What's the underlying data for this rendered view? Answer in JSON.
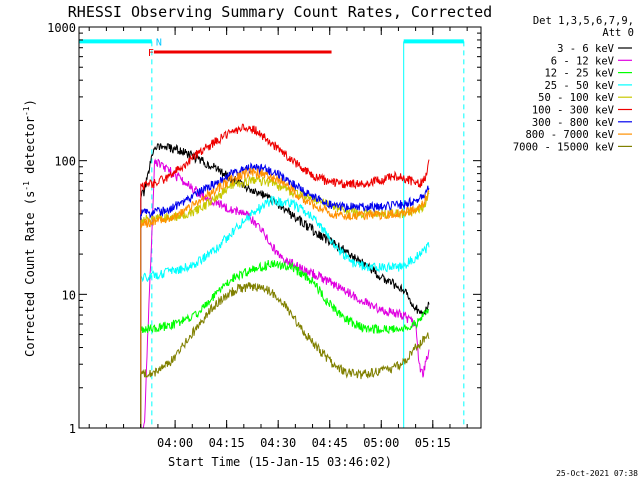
{
  "chart_data": {
    "type": "line",
    "title": "RHESSI Observing Summary Count Rates, Corrected",
    "xlabel": "Start Time (15-Jan-15 03:46:02)",
    "ylabel_pre": "Corrected Count Rate (s",
    "ylabel_sup": "-1",
    "ylabel_mid": " detector",
    "ylabel_sup2": "-1",
    "ylabel_post": ")",
    "yscale": "log",
    "ylim": [
      1,
      1000
    ],
    "xlim_min": [
      -14,
      103
    ],
    "x_unit": "minutes after 03:46:02",
    "x_ticks": [
      {
        "label": "04:00",
        "min": 13.97
      },
      {
        "label": "04:15",
        "min": 28.97
      },
      {
        "label": "04:30",
        "min": 43.97
      },
      {
        "label": "04:45",
        "min": 58.97
      },
      {
        "label": "05:00",
        "min": 73.97
      },
      {
        "label": "05:15",
        "min": 88.97
      }
    ],
    "y_ticks": [
      {
        "label": "1",
        "value": 1
      },
      {
        "label": "10",
        "value": 10
      },
      {
        "label": "100",
        "value": 100
      },
      {
        "label": "1000",
        "value": 1000
      }
    ],
    "legend_header": [
      "Det 1,3,5,6,7,9,",
      "Att 0"
    ],
    "series": [
      {
        "name": "3 - 6 keV",
        "color": "#000000",
        "points": [
          [
            4,
            55
          ],
          [
            5,
            58
          ],
          [
            8,
            130
          ],
          [
            15,
            120
          ],
          [
            20,
            105
          ],
          [
            25,
            90
          ],
          [
            30,
            75
          ],
          [
            35,
            63
          ],
          [
            40,
            55
          ],
          [
            45,
            45
          ],
          [
            50,
            36
          ],
          [
            55,
            29
          ],
          [
            60,
            24
          ],
          [
            65,
            20
          ],
          [
            70,
            16
          ],
          [
            75,
            13
          ],
          [
            80,
            11
          ],
          [
            84,
            8
          ],
          [
            86,
            7
          ],
          [
            88,
            9
          ]
        ]
      },
      {
        "name": "6 - 12 keV",
        "color": "#e000e0",
        "points": [
          [
            4,
            1
          ],
          [
            5,
            1
          ],
          [
            8,
            100
          ],
          [
            12,
            85
          ],
          [
            17,
            68
          ],
          [
            22,
            55
          ],
          [
            28,
            46
          ],
          [
            32,
            42
          ],
          [
            35,
            39
          ],
          [
            38,
            33
          ],
          [
            40,
            28
          ],
          [
            42,
            23
          ],
          [
            44,
            20
          ],
          [
            46,
            18
          ],
          [
            50,
            16
          ],
          [
            55,
            14
          ],
          [
            60,
            12
          ],
          [
            65,
            10
          ],
          [
            70,
            8.5
          ],
          [
            75,
            7.5
          ],
          [
            80,
            7
          ],
          [
            84,
            6
          ],
          [
            85,
            3
          ],
          [
            86,
            2.5
          ],
          [
            88,
            4
          ]
        ]
      },
      {
        "name": "12 - 25 keV",
        "color": "#00ff00",
        "points": [
          [
            4,
            5.5
          ],
          [
            8,
            5.5
          ],
          [
            14,
            6
          ],
          [
            20,
            7
          ],
          [
            26,
            10
          ],
          [
            30,
            13
          ],
          [
            36,
            15
          ],
          [
            42,
            17
          ],
          [
            48,
            16
          ],
          [
            54,
            12.5
          ],
          [
            58,
            9
          ],
          [
            62,
            7
          ],
          [
            66,
            6
          ],
          [
            70,
            5.5
          ],
          [
            75,
            5.5
          ],
          [
            80,
            5.5
          ],
          [
            84,
            6
          ],
          [
            86,
            7
          ],
          [
            88,
            8
          ]
        ]
      },
      {
        "name": "25 - 50 keV",
        "color": "#00ffff",
        "points": [
          [
            4,
            13
          ],
          [
            8,
            14
          ],
          [
            14,
            15
          ],
          [
            20,
            17
          ],
          [
            26,
            22
          ],
          [
            30,
            28
          ],
          [
            36,
            40
          ],
          [
            42,
            50
          ],
          [
            48,
            48
          ],
          [
            54,
            38
          ],
          [
            58,
            28
          ],
          [
            62,
            21
          ],
          [
            66,
            17
          ],
          [
            70,
            16
          ],
          [
            75,
            16
          ],
          [
            80,
            16
          ],
          [
            84,
            19
          ],
          [
            86,
            21
          ],
          [
            88,
            23
          ]
        ]
      },
      {
        "name": "50 - 100 keV",
        "color": "#c8c800",
        "points": [
          [
            4,
            36
          ],
          [
            8,
            37
          ],
          [
            14,
            38
          ],
          [
            20,
            42
          ],
          [
            26,
            52
          ],
          [
            30,
            63
          ],
          [
            36,
            72
          ],
          [
            42,
            68
          ],
          [
            48,
            58
          ],
          [
            54,
            53
          ],
          [
            58,
            48
          ],
          [
            62,
            44
          ],
          [
            66,
            41
          ],
          [
            70,
            40
          ],
          [
            75,
            40
          ],
          [
            80,
            40
          ],
          [
            84,
            42
          ],
          [
            86,
            45
          ],
          [
            88,
            55
          ]
        ]
      },
      {
        "name": "100 - 300 keV",
        "color": "#ee0000",
        "points": [
          [
            4,
            65
          ],
          [
            8,
            68
          ],
          [
            12,
            75
          ],
          [
            16,
            90
          ],
          [
            20,
            110
          ],
          [
            24,
            130
          ],
          [
            28,
            150
          ],
          [
            32,
            170
          ],
          [
            35,
            180
          ],
          [
            38,
            165
          ],
          [
            42,
            135
          ],
          [
            46,
            110
          ],
          [
            50,
            92
          ],
          [
            54,
            78
          ],
          [
            58,
            70
          ],
          [
            62,
            67
          ],
          [
            66,
            67
          ],
          [
            70,
            68
          ],
          [
            74,
            72
          ],
          [
            78,
            76
          ],
          [
            82,
            72
          ],
          [
            85,
            66
          ],
          [
            87,
            76
          ],
          [
            88,
            110
          ]
        ]
      },
      {
        "name": "300 - 800 keV",
        "color": "#0000ee",
        "points": [
          [
            4,
            40
          ],
          [
            8,
            41
          ],
          [
            12,
            43
          ],
          [
            16,
            48
          ],
          [
            20,
            56
          ],
          [
            24,
            64
          ],
          [
            28,
            74
          ],
          [
            32,
            83
          ],
          [
            36,
            88
          ],
          [
            40,
            86
          ],
          [
            44,
            78
          ],
          [
            48,
            67
          ],
          [
            52,
            57
          ],
          [
            56,
            50
          ],
          [
            60,
            46
          ],
          [
            64,
            45
          ],
          [
            68,
            45
          ],
          [
            72,
            45
          ],
          [
            76,
            46
          ],
          [
            80,
            47
          ],
          [
            84,
            50
          ],
          [
            86,
            55
          ],
          [
            88,
            65
          ]
        ]
      },
      {
        "name": "800 - 7000 keV",
        "color": "#ff9000",
        "points": [
          [
            4,
            34
          ],
          [
            8,
            35
          ],
          [
            12,
            37
          ],
          [
            16,
            41
          ],
          [
            20,
            48
          ],
          [
            24,
            56
          ],
          [
            28,
            66
          ],
          [
            32,
            76
          ],
          [
            36,
            82
          ],
          [
            40,
            80
          ],
          [
            44,
            72
          ],
          [
            48,
            60
          ],
          [
            52,
            50
          ],
          [
            56,
            44
          ],
          [
            60,
            40
          ],
          [
            64,
            39
          ],
          [
            68,
            39
          ],
          [
            72,
            39
          ],
          [
            76,
            40
          ],
          [
            80,
            41
          ],
          [
            84,
            43
          ],
          [
            86,
            48
          ],
          [
            88,
            58
          ]
        ]
      },
      {
        "name": "7000 - 15000 keV",
        "color": "#808000",
        "points": [
          [
            4,
            2.6
          ],
          [
            8,
            2.6
          ],
          [
            12,
            3
          ],
          [
            16,
            4
          ],
          [
            20,
            5.5
          ],
          [
            24,
            7.5
          ],
          [
            28,
            9.5
          ],
          [
            32,
            11
          ],
          [
            36,
            11.5
          ],
          [
            40,
            11
          ],
          [
            44,
            9.5
          ],
          [
            48,
            7
          ],
          [
            52,
            5
          ],
          [
            56,
            3.8
          ],
          [
            60,
            3
          ],
          [
            64,
            2.6
          ],
          [
            68,
            2.5
          ],
          [
            72,
            2.6
          ],
          [
            76,
            2.7
          ],
          [
            80,
            3
          ],
          [
            84,
            4
          ],
          [
            86,
            4.5
          ],
          [
            88,
            5
          ]
        ]
      }
    ],
    "flags": [
      {
        "label": "F",
        "color": "#ee0000",
        "start_min": 7.8,
        "end_min": 59.5,
        "value": 650
      },
      {
        "label": "N",
        "color": "#00c8ff",
        "start_min": 7.2,
        "end_min": 7.2,
        "value": 780
      }
    ],
    "att_states": [
      {
        "start_min": -14,
        "end_min": 7.2,
        "value": 780,
        "color": "#00ffff"
      },
      {
        "start_min": 80.5,
        "end_min": 98,
        "value": 780,
        "color": "#00ffff"
      }
    ],
    "vlines": [
      {
        "min": -14,
        "style": "solid",
        "color": "#00ffff"
      },
      {
        "min": 7.2,
        "style": "dashed",
        "color": "#00ffff"
      },
      {
        "min": 80.5,
        "style": "solid",
        "color": "#00ffff"
      },
      {
        "min": 98,
        "style": "dashed",
        "color": "#00ffff"
      }
    ],
    "footer_timestamp": "25-Oct-2021 07:38"
  }
}
